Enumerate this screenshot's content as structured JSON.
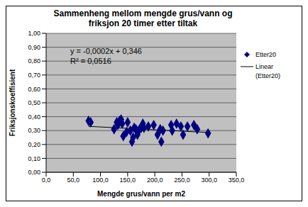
{
  "chart_data": {
    "type": "scatter",
    "title": "Sammenheng mellom mengde grus/vann og friksjon 20 timer etter tiltak",
    "x_label": "Mengde grus/vann per m2",
    "y_label": "Friksjonskoeffisient",
    "xlim": [
      0,
      350
    ],
    "ylim": [
      0,
      1
    ],
    "xticks": [
      {
        "value": 0,
        "label": "0,0"
      },
      {
        "value": 50,
        "label": "50,0"
      },
      {
        "value": 100,
        "label": "100,0"
      },
      {
        "value": 150,
        "label": "150,0"
      },
      {
        "value": 200,
        "label": "200,0"
      },
      {
        "value": 250,
        "label": "250,0"
      },
      {
        "value": 300,
        "label": "300,0"
      },
      {
        "value": 350,
        "label": "350,0"
      }
    ],
    "yticks": [
      {
        "value": 0,
        "label": "0,00"
      },
      {
        "value": 0.1,
        "label": "0,10"
      },
      {
        "value": 0.2,
        "label": "0,20"
      },
      {
        "value": 0.3,
        "label": "0,30"
      },
      {
        "value": 0.4,
        "label": "0,40"
      },
      {
        "value": 0.5,
        "label": "0,50"
      },
      {
        "value": 0.6,
        "label": "0,60"
      },
      {
        "value": 0.7,
        "label": "0,70"
      },
      {
        "value": 0.8,
        "label": "0,80"
      },
      {
        "value": 0.9,
        "label": "0,90"
      },
      {
        "value": 1,
        "label": "1,00"
      }
    ],
    "grid": true,
    "legend": "right",
    "annotations": [
      "y = -0,0002x + 0,346",
      "R² = 0,0516"
    ],
    "series": [
      {
        "name": "Etter20",
        "type": "scatter",
        "marker": "diamond",
        "color": "#000080",
        "x": [
          78,
          82,
          125,
          130,
          132,
          135,
          138,
          140,
          142,
          148,
          150,
          155,
          158,
          160,
          162,
          165,
          167,
          168,
          172,
          175,
          178,
          180,
          188,
          198,
          205,
          210,
          212,
          215,
          230,
          232,
          240,
          248,
          252,
          260,
          272,
          278,
          298
        ],
        "values": [
          0.37,
          0.36,
          0.31,
          0.36,
          0.34,
          0.37,
          0.38,
          0.35,
          0.26,
          0.29,
          0.36,
          0.3,
          0.22,
          0.25,
          0.32,
          0.31,
          0.3,
          0.27,
          0.31,
          0.32,
          0.35,
          0.32,
          0.33,
          0.34,
          0.27,
          0.31,
          0.22,
          0.3,
          0.34,
          0.3,
          0.35,
          0.33,
          0.27,
          0.33,
          0.34,
          0.31,
          0.28
        ]
      },
      {
        "name": "Linear (Etter20)",
        "type": "line",
        "line_style": "solid",
        "color": "#000000",
        "x": [
          78,
          298
        ],
        "values": [
          0.3304,
          0.2864
        ]
      }
    ]
  }
}
